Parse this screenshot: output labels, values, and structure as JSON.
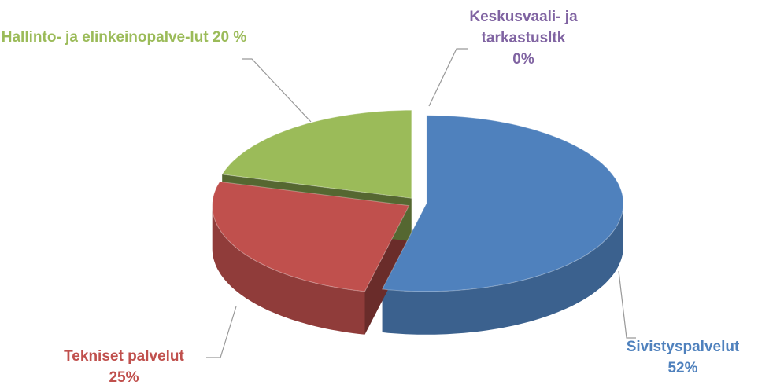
{
  "chart_data": {
    "type": "pie3d",
    "categories": [
      "Sivistyspalvelut",
      "Tekniset palvelut",
      "Hallinto- ja elinkeinopalve-lut",
      "Keskusvaali- ja tarkastusltk"
    ],
    "values": [
      52,
      25,
      20,
      0
    ],
    "value_labels": [
      "52%",
      "25%",
      "20 %",
      "0%"
    ],
    "colors": [
      "#4f81bd",
      "#c0504d",
      "#9bbb59",
      "#8064a2"
    ]
  }
}
